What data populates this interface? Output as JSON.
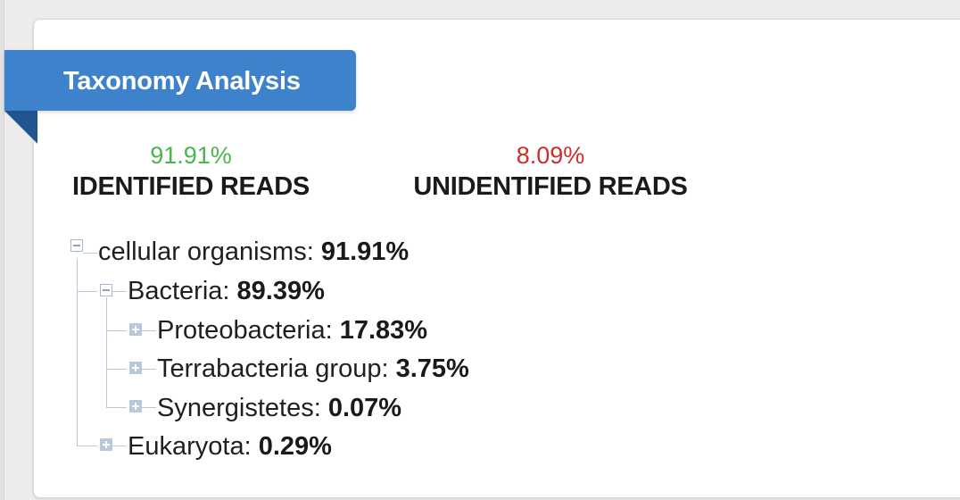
{
  "panel": {
    "title": "Taxonomy Analysis"
  },
  "stats": {
    "identified": {
      "value": "91.91%",
      "label": "IDENTIFIED READS",
      "color": "#4bb44b"
    },
    "unidentified": {
      "value": "8.09%",
      "label": "UNIDENTIFIED READS",
      "color": "#c9302c"
    }
  },
  "tree": {
    "root": {
      "name": "cellular organisms:",
      "pct": "91.91%",
      "state": "expanded"
    },
    "bacteria": {
      "name": "Bacteria:",
      "pct": "89.39%",
      "state": "expanded"
    },
    "proteobacteria": {
      "name": "Proteobacteria:",
      "pct": "17.83%",
      "state": "collapsed"
    },
    "terrabacteria": {
      "name": "Terrabacteria group:",
      "pct": "3.75%",
      "state": "collapsed"
    },
    "synergistetes": {
      "name": "Synergistetes:",
      "pct": "0.07%",
      "state": "collapsed"
    },
    "eukaryota": {
      "name": "Eukaryota:",
      "pct": "0.29%",
      "state": "collapsed"
    }
  }
}
